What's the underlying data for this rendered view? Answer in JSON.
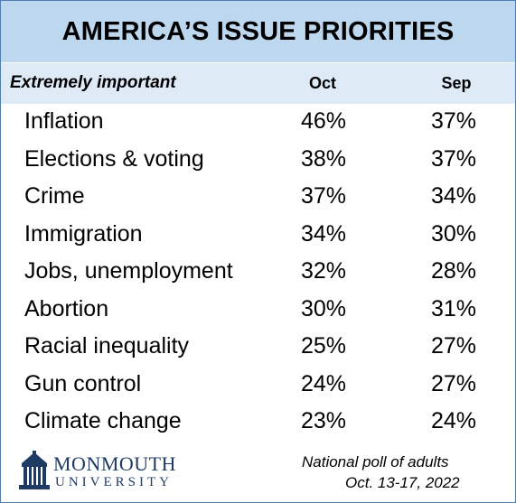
{
  "chart_data": {
    "type": "table",
    "title": "AMERICA’S ISSUE PRIORITIES",
    "row_header": "Extremely important",
    "columns": [
      "Oct",
      "Sep"
    ],
    "rows": [
      {
        "issue": "Inflation",
        "oct": "46%",
        "sep": "37%"
      },
      {
        "issue": "Elections & voting",
        "oct": "38%",
        "sep": "37%"
      },
      {
        "issue": "Crime",
        "oct": "37%",
        "sep": "34%"
      },
      {
        "issue": "Immigration",
        "oct": "34%",
        "sep": "30%"
      },
      {
        "issue": "Jobs, unemployment",
        "oct": "32%",
        "sep": "28%"
      },
      {
        "issue": "Abortion",
        "oct": "30%",
        "sep": "31%"
      },
      {
        "issue": "Racial inequality",
        "oct": "25%",
        "sep": "27%"
      },
      {
        "issue": "Gun control",
        "oct": "24%",
        "sep": "27%"
      },
      {
        "issue": "Climate change",
        "oct": "23%",
        "sep": "24%"
      }
    ]
  },
  "footer": {
    "logo_line1": "MONMOUTH",
    "logo_line2": "UNIVERSITY",
    "source_line1": "National poll of adults",
    "source_line2": "Oct. 13-17, 2022"
  },
  "colors": {
    "title_bg": "#bdd7ee",
    "subhead_bg": "#deebf7",
    "border": "#4f7fb0",
    "logo": "#1f3b63"
  }
}
